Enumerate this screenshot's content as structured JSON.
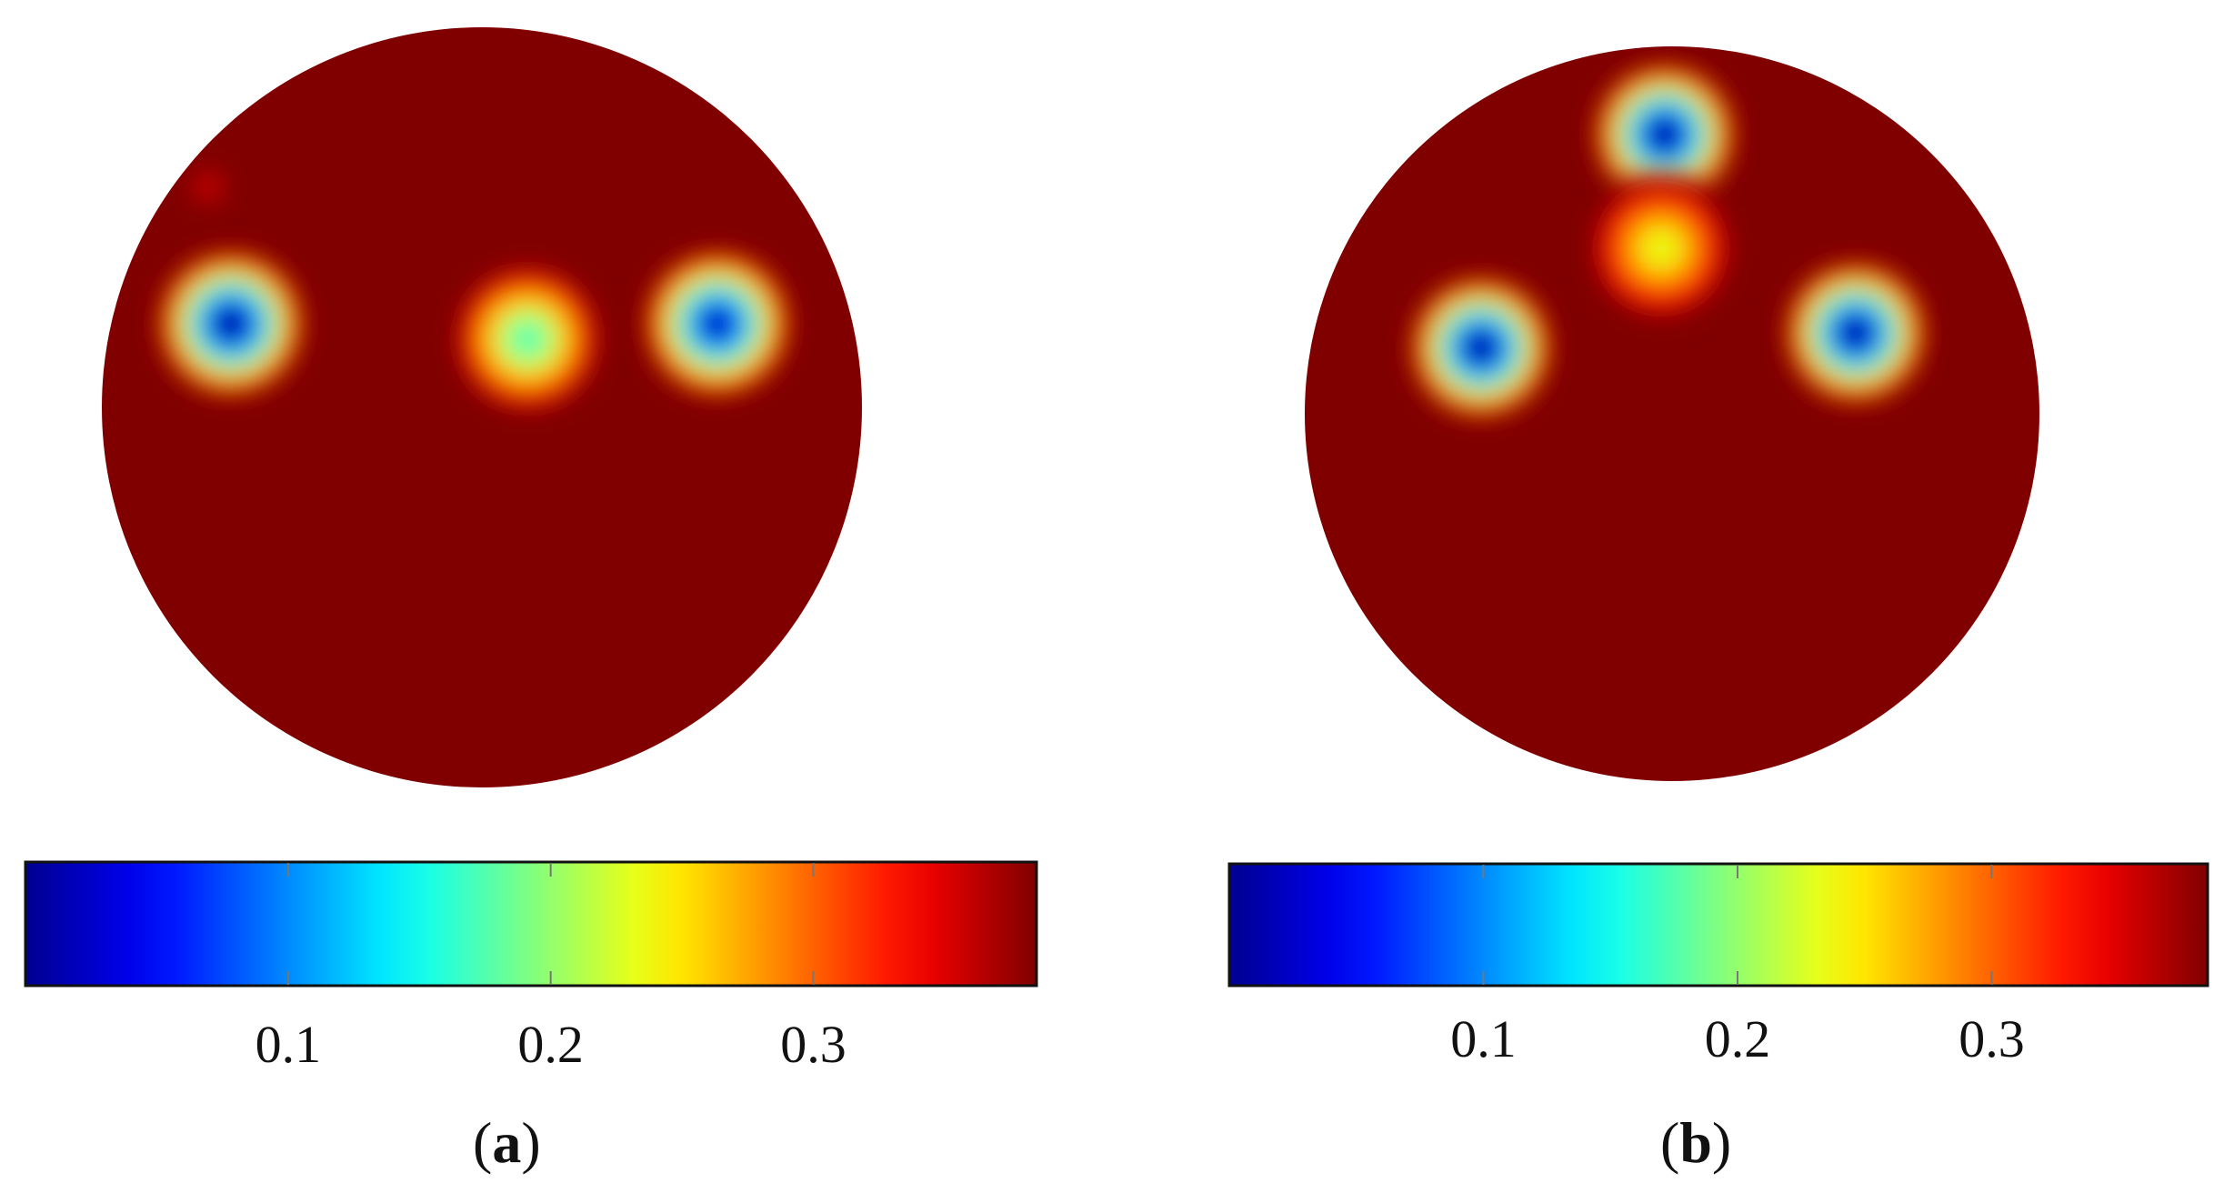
{
  "chart_data": [
    {
      "type": "heatmap",
      "caption_open": "(",
      "caption_letter": "a",
      "caption_close": ")",
      "colorbar": {
        "colormap": "jet",
        "min": 0.0,
        "max": 0.385,
        "ticks": [
          0.1,
          0.2,
          0.3
        ],
        "tick_labels": [
          "0.1",
          "0.2",
          "0.3"
        ]
      },
      "background_value": 0.385,
      "inclusions": [
        {
          "cx": -0.66,
          "cy": 0.22,
          "value": 0.0
        },
        {
          "cx": 0.12,
          "cy": 0.18,
          "value": 0.17
        },
        {
          "cx": 0.62,
          "cy": 0.22,
          "value": 0.02
        },
        {
          "cx": -0.72,
          "cy": 0.58,
          "value": 0.34
        }
      ]
    },
    {
      "type": "heatmap",
      "caption_open": "(",
      "caption_letter": "b",
      "caption_close": ")",
      "colorbar": {
        "colormap": "jet",
        "min": 0.0,
        "max": 0.385,
        "ticks": [
          0.1,
          0.2,
          0.3
        ],
        "tick_labels": [
          "0.1",
          "0.2",
          "0.3"
        ]
      },
      "background_value": 0.385,
      "inclusions": [
        {
          "cx": -0.02,
          "cy": 0.76,
          "value": 0.0
        },
        {
          "cx": -0.03,
          "cy": 0.45,
          "value": 0.23
        },
        {
          "cx": -0.52,
          "cy": 0.18,
          "value": 0.0
        },
        {
          "cx": 0.5,
          "cy": 0.22,
          "value": 0.0
        }
      ]
    }
  ]
}
